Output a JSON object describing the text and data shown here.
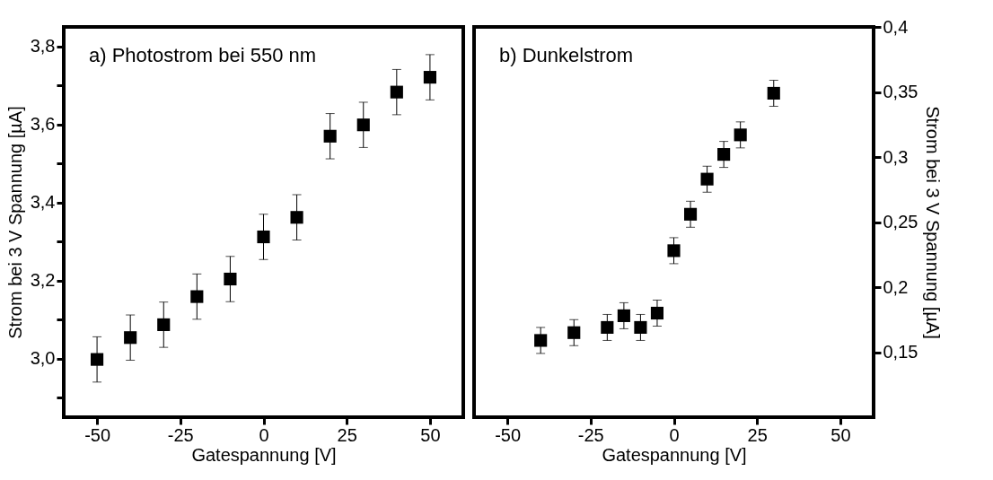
{
  "chart_data": [
    {
      "type": "scatter",
      "title": "a) Photostrom bei 550 nm",
      "xlabel": "Gatespannung [V]",
      "ylabel": "Strom bei 3 V Spannung [µA]",
      "marker": "square",
      "grid": false,
      "legend": false,
      "x": [
        -50,
        -40,
        -30,
        -20,
        -10,
        0,
        10,
        20,
        30,
        40,
        50
      ],
      "series": [
        {
          "color": "#000000",
          "values": [
            2.998,
            3.054,
            3.087,
            3.159,
            3.204,
            3.312,
            3.362,
            3.57,
            3.599,
            3.683,
            3.721
          ],
          "errors": [
            0.058,
            0.058,
            0.058,
            0.058,
            0.058,
            0.058,
            0.058,
            0.058,
            0.058,
            0.058,
            0.058
          ]
        }
      ],
      "xlim": [
        -60,
        60
      ],
      "xticks": [
        -50,
        -25,
        0,
        25,
        50
      ],
      "ylim": [
        2.85,
        3.85
      ],
      "yticks": [
        {
          "value": 2.9,
          "label": null
        },
        {
          "value": 3.0,
          "label": "3,0"
        },
        {
          "value": 3.1,
          "label": null
        },
        {
          "value": 3.2,
          "label": "3,2"
        },
        {
          "value": 3.3,
          "label": null
        },
        {
          "value": 3.4,
          "label": "3,4"
        },
        {
          "value": 3.5,
          "label": null
        },
        {
          "value": 3.6,
          "label": "3,6"
        },
        {
          "value": 3.7,
          "label": null
        },
        {
          "value": 3.8,
          "label": "3,8"
        }
      ]
    },
    {
      "type": "scatter",
      "title": "b) Dunkelstrom",
      "xlabel": "Gatespannung [V]",
      "y2label": "Strom bei 3 V Spannung [µA]",
      "marker": "square",
      "grid": false,
      "legend": false,
      "x": [
        -40,
        -30,
        -20,
        -15,
        -10,
        -5,
        0,
        5,
        10,
        15,
        20,
        30
      ],
      "series": [
        {
          "color": "#000000",
          "axis": "y2",
          "values": [
            0.159,
            0.165,
            0.169,
            0.178,
            0.169,
            0.18,
            0.228,
            0.256,
            0.283,
            0.302,
            0.317,
            0.349
          ],
          "errors": [
            0.01,
            0.01,
            0.01,
            0.01,
            0.01,
            0.01,
            0.01,
            0.01,
            0.01,
            0.01,
            0.01,
            0.01
          ]
        }
      ],
      "xlim": [
        -60,
        60
      ],
      "xticks": [
        -50,
        -25,
        0,
        25,
        50
      ],
      "y2lim": [
        0.1,
        0.4
      ],
      "y2ticks": [
        {
          "value": 0.15,
          "label": "0,15"
        },
        {
          "value": 0.2,
          "label": "0,2"
        },
        {
          "value": 0.25,
          "label": "0,25"
        },
        {
          "value": 0.3,
          "label": "0,3"
        },
        {
          "value": 0.35,
          "label": "0,35"
        },
        {
          "value": 0.4,
          "label": "0,4"
        }
      ]
    }
  ]
}
